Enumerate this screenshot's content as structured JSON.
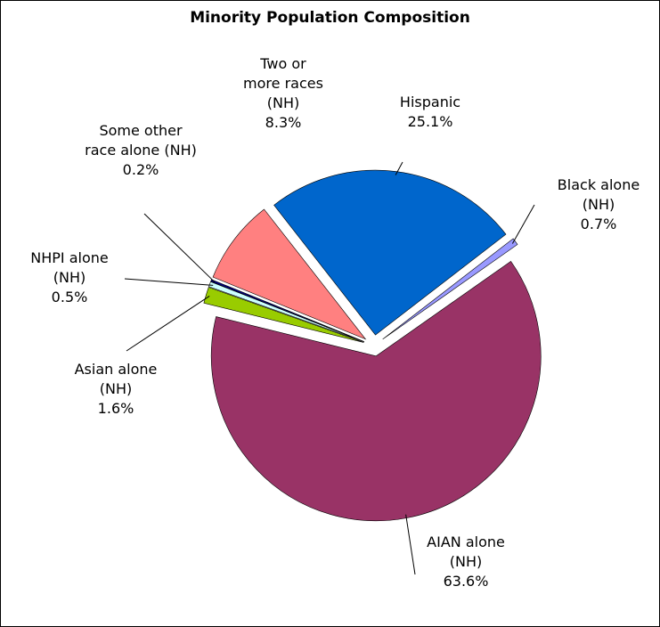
{
  "chart_data": {
    "type": "pie",
    "title": "Minority Population Composition",
    "categories": [
      "Hispanic",
      "Black alone (NH)",
      "AIAN alone (NH)",
      "Asian alone (NH)",
      "NHPI alone (NH)",
      "Some other race alone (NH)",
      "Two or more races (NH)"
    ],
    "values": [
      25.1,
      0.7,
      63.6,
      1.6,
      0.5,
      0.2,
      8.3
    ],
    "value_labels": [
      "25.1%",
      "0.7%",
      "63.6%",
      "1.6%",
      "0.5%",
      "0.2%",
      "8.3%"
    ],
    "colors": [
      "#0066cc",
      "#9999ff",
      "#993366",
      "#99cc00",
      "#ccffff",
      "#000080",
      "#ff8080"
    ]
  }
}
